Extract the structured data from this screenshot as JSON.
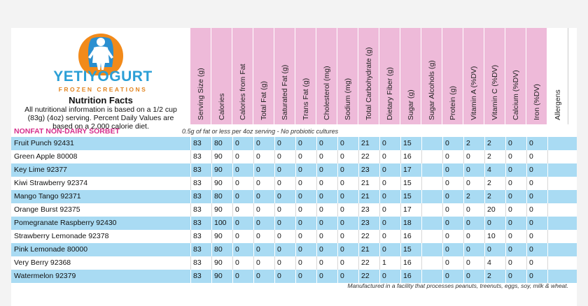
{
  "brand": {
    "name_part1": "YETI",
    "name_part2": "YOGURT",
    "tagline": "FROZEN CREATIONS"
  },
  "nutrition": {
    "title": "Nutrition Facts",
    "description": "All nutritional information is based on a 1/2 cup (83g) (4oz) serving.  Percent Daily Values are based on a 2,000 calorie diet."
  },
  "columns": [
    "Serving Size (g)",
    "Calories",
    "Calories from Fat",
    "Total Fat (g)",
    "Saturated Fat (g)",
    "Trans Fat (g)",
    "Cholesterol (mg)",
    "Sodium (mg)",
    "Total Carbohydrate (g)",
    "Dietary Fiber (g)",
    "Sugar (g)",
    "Sugar Alcohols (g)",
    "Protein (g)",
    "Vitamin A (%DV)",
    "Vitamin C (%DV)",
    "Calcium (%DV)",
    "Iron (%DV)",
    "Allergens"
  ],
  "section": {
    "title": "NONFAT NON-DAIRY SORBET",
    "note": "0.5g of fat or less per 4oz serving - No probiotic cultures"
  },
  "rows": [
    {
      "name": "Fruit Punch 92431",
      "values": [
        "83",
        "80",
        "0",
        "0",
        "0",
        "0",
        "0",
        "0",
        "21",
        "0",
        "15",
        "",
        "0",
        "2",
        "2",
        "0",
        "0",
        ""
      ]
    },
    {
      "name": "Green Apple 80008",
      "values": [
        "83",
        "90",
        "0",
        "0",
        "0",
        "0",
        "0",
        "0",
        "22",
        "0",
        "16",
        "",
        "0",
        "0",
        "2",
        "0",
        "0",
        ""
      ]
    },
    {
      "name": "Key Lime 92377",
      "values": [
        "83",
        "90",
        "0",
        "0",
        "0",
        "0",
        "0",
        "0",
        "23",
        "0",
        "17",
        "",
        "0",
        "0",
        "4",
        "0",
        "0",
        ""
      ]
    },
    {
      "name": "Kiwi Strawberry 92374",
      "values": [
        "83",
        "90",
        "0",
        "0",
        "0",
        "0",
        "0",
        "0",
        "21",
        "0",
        "15",
        "",
        "0",
        "0",
        "2",
        "0",
        "0",
        ""
      ]
    },
    {
      "name": "Mango Tango 92371",
      "values": [
        "83",
        "80",
        "0",
        "0",
        "0",
        "0",
        "0",
        "0",
        "21",
        "0",
        "15",
        "",
        "0",
        "2",
        "2",
        "0",
        "0",
        ""
      ]
    },
    {
      "name": "Orange Burst 92375",
      "values": [
        "83",
        "90",
        "0",
        "0",
        "0",
        "0",
        "0",
        "0",
        "23",
        "0",
        "17",
        "",
        "0",
        "0",
        "20",
        "0",
        "0",
        ""
      ]
    },
    {
      "name": "Pomegranate Raspberry 92430",
      "values": [
        "83",
        "100",
        "0",
        "0",
        "0",
        "0",
        "0",
        "0",
        "23",
        "0",
        "18",
        "",
        "0",
        "0",
        "0",
        "0",
        "0",
        ""
      ]
    },
    {
      "name": "Strawberry Lemonade 92378",
      "values": [
        "83",
        "90",
        "0",
        "0",
        "0",
        "0",
        "0",
        "0",
        "22",
        "0",
        "16",
        "",
        "0",
        "0",
        "10",
        "0",
        "0",
        ""
      ]
    },
    {
      "name": "Pink Lemonade 80000",
      "values": [
        "83",
        "80",
        "0",
        "0",
        "0",
        "0",
        "0",
        "0",
        "21",
        "0",
        "15",
        "",
        "0",
        "0",
        "0",
        "0",
        "0",
        ""
      ]
    },
    {
      "name": "Very Berry 92368",
      "values": [
        "83",
        "90",
        "0",
        "0",
        "0",
        "0",
        "0",
        "0",
        "22",
        "1",
        "16",
        "",
        "0",
        "0",
        "4",
        "0",
        "0",
        ""
      ]
    },
    {
      "name": "Watermelon 92379",
      "values": [
        "83",
        "90",
        "0",
        "0",
        "0",
        "0",
        "0",
        "0",
        "22",
        "0",
        "16",
        "",
        "0",
        "0",
        "2",
        "0",
        "0",
        ""
      ]
    }
  ],
  "footer": "Manufactured in a facility that processes peanuts, treenuts, eggs, soy, milk & wheat.",
  "colors": {
    "header_pink": "#eebad9",
    "row_blue": "#a9dbf3",
    "brand_blue": "#2b9fd6",
    "brand_orange": "#e2841f",
    "section_pink": "#d62f8c"
  },
  "icons": {
    "logo": "yeti-figure-icon"
  }
}
